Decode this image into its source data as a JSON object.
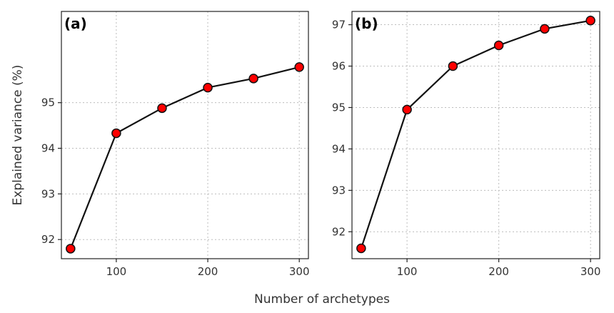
{
  "figure": {
    "shared_xlabel": "Number of archetypes"
  },
  "chart_data": [
    {
      "type": "line",
      "panel_tag": "(a)",
      "xlabel": "Number of archetypes",
      "ylabel": "Explained variance (%)",
      "x": [
        50,
        100,
        150,
        200,
        250,
        300
      ],
      "series": [
        {
          "values": [
            91.8,
            94.33,
            94.88,
            95.33,
            95.53,
            95.78
          ]
        }
      ],
      "xlim": [
        40,
        310
      ],
      "ylim": [
        91.58,
        97.0
      ],
      "xticks": [
        100,
        200,
        300
      ],
      "yticks": [
        92,
        93,
        94,
        95
      ],
      "grid": true,
      "line_color": "#111111",
      "marker_color": "#ff0000"
    },
    {
      "type": "line",
      "panel_tag": "(b)",
      "xlabel": "Number of archetypes",
      "ylabel": "",
      "x": [
        50,
        100,
        150,
        200,
        250,
        300
      ],
      "series": [
        {
          "values": [
            91.6,
            94.95,
            96.0,
            96.5,
            96.9,
            97.1
          ]
        }
      ],
      "xlim": [
        40,
        310
      ],
      "ylim": [
        91.35,
        97.32
      ],
      "xticks": [
        100,
        200,
        300
      ],
      "yticks": [
        92,
        93,
        94,
        95,
        96,
        97
      ],
      "grid": true,
      "line_color": "#111111",
      "marker_color": "#ff0000"
    }
  ]
}
